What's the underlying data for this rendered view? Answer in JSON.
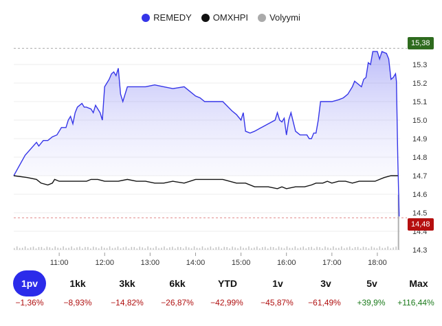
{
  "legend": [
    {
      "label": "REMEDY",
      "color": "#3535e8"
    },
    {
      "label": "OMXHPI",
      "color": "#111111"
    },
    {
      "label": "Volyymi",
      "color": "#aaaaaa"
    }
  ],
  "badges": {
    "high": "15,38",
    "last": "14,48",
    "high_color": "#2e6b1e",
    "last_color": "#b50f0f"
  },
  "chart_data": {
    "type": "line",
    "title": "",
    "xlabel": "",
    "ylabel": "",
    "x_ticks": [
      "11:00",
      "12:00",
      "13:00",
      "14:00",
      "15:00",
      "16:00",
      "17:00",
      "18:00"
    ],
    "y_ticks": [
      "15.3",
      "15.2",
      "15.1",
      "15.0",
      "14.9",
      "14.8",
      "14.7",
      "14.6",
      "14.5",
      "14.4",
      "14.3"
    ],
    "ylim": [
      14.3,
      15.4
    ],
    "xlim": [
      10.0,
      18.5
    ],
    "series": [
      {
        "name": "REMEDY",
        "points": [
          [
            10.0,
            14.7
          ],
          [
            10.25,
            14.81
          ],
          [
            10.5,
            14.88
          ],
          [
            10.55,
            14.86
          ],
          [
            10.65,
            14.89
          ],
          [
            10.75,
            14.89
          ],
          [
            10.85,
            14.91
          ],
          [
            10.95,
            14.92
          ],
          [
            11.05,
            14.96
          ],
          [
            11.15,
            14.96
          ],
          [
            11.2,
            15.0
          ],
          [
            11.25,
            15.02
          ],
          [
            11.3,
            14.98
          ],
          [
            11.35,
            15.04
          ],
          [
            11.4,
            15.07
          ],
          [
            11.5,
            15.09
          ],
          [
            11.55,
            15.07
          ],
          [
            11.6,
            15.07
          ],
          [
            11.7,
            15.06
          ],
          [
            11.75,
            15.04
          ],
          [
            11.8,
            15.08
          ],
          [
            11.9,
            15.04
          ],
          [
            11.95,
            15.0
          ],
          [
            12.0,
            15.18
          ],
          [
            12.05,
            15.2
          ],
          [
            12.1,
            15.22
          ],
          [
            12.15,
            15.25
          ],
          [
            12.2,
            15.26
          ],
          [
            12.25,
            15.24
          ],
          [
            12.3,
            15.28
          ],
          [
            12.35,
            15.14
          ],
          [
            12.4,
            15.1
          ],
          [
            12.5,
            15.18
          ],
          [
            12.7,
            15.18
          ],
          [
            12.9,
            15.18
          ],
          [
            13.1,
            15.19
          ],
          [
            13.3,
            15.18
          ],
          [
            13.5,
            15.17
          ],
          [
            13.75,
            15.18
          ],
          [
            13.85,
            15.16
          ],
          [
            14.0,
            15.13
          ],
          [
            14.1,
            15.12
          ],
          [
            14.2,
            15.1
          ],
          [
            14.4,
            15.1
          ],
          [
            14.6,
            15.1
          ],
          [
            14.8,
            15.05
          ],
          [
            14.9,
            15.03
          ],
          [
            15.0,
            15.0
          ],
          [
            15.05,
            15.04
          ],
          [
            15.1,
            14.94
          ],
          [
            15.2,
            14.93
          ],
          [
            15.3,
            14.94
          ],
          [
            15.45,
            14.96
          ],
          [
            15.6,
            14.98
          ],
          [
            15.75,
            15.0
          ],
          [
            15.8,
            15.04
          ],
          [
            15.85,
            15.0
          ],
          [
            15.9,
            14.99
          ],
          [
            15.95,
            15.01
          ],
          [
            16.0,
            14.92
          ],
          [
            16.05,
            15.0
          ],
          [
            16.1,
            15.04
          ],
          [
            16.2,
            14.94
          ],
          [
            16.3,
            14.92
          ],
          [
            16.45,
            14.92
          ],
          [
            16.5,
            14.9
          ],
          [
            16.55,
            14.9
          ],
          [
            16.6,
            14.93
          ],
          [
            16.65,
            14.93
          ],
          [
            16.7,
            15.0
          ],
          [
            16.75,
            15.1
          ],
          [
            16.85,
            15.1
          ],
          [
            17.0,
            15.1
          ],
          [
            17.15,
            15.11
          ],
          [
            17.25,
            15.12
          ],
          [
            17.3,
            15.13
          ],
          [
            17.35,
            15.14
          ],
          [
            17.45,
            15.18
          ],
          [
            17.5,
            15.21
          ],
          [
            17.55,
            15.2
          ],
          [
            17.65,
            15.18
          ],
          [
            17.7,
            15.22
          ],
          [
            17.75,
            15.23
          ],
          [
            17.8,
            15.31
          ],
          [
            17.85,
            15.3
          ],
          [
            17.9,
            15.37
          ],
          [
            17.95,
            15.37
          ],
          [
            18.0,
            15.37
          ],
          [
            18.05,
            15.33
          ],
          [
            18.1,
            15.37
          ],
          [
            18.2,
            15.36
          ],
          [
            18.25,
            15.33
          ],
          [
            18.3,
            15.22
          ],
          [
            18.35,
            15.23
          ],
          [
            18.4,
            15.25
          ],
          [
            18.42,
            15.21
          ],
          [
            18.45,
            14.79
          ],
          [
            18.48,
            14.48
          ]
        ]
      },
      {
        "name": "OMXHPI",
        "points": [
          [
            10.0,
            14.7
          ],
          [
            10.3,
            14.69
          ],
          [
            10.5,
            14.68
          ],
          [
            10.6,
            14.66
          ],
          [
            10.75,
            14.65
          ],
          [
            10.85,
            14.66
          ],
          [
            10.9,
            14.68
          ],
          [
            11.0,
            14.67
          ],
          [
            11.2,
            14.67
          ],
          [
            11.4,
            14.67
          ],
          [
            11.6,
            14.67
          ],
          [
            11.7,
            14.68
          ],
          [
            11.85,
            14.68
          ],
          [
            12.0,
            14.67
          ],
          [
            12.15,
            14.67
          ],
          [
            12.3,
            14.67
          ],
          [
            12.5,
            14.68
          ],
          [
            12.7,
            14.67
          ],
          [
            12.9,
            14.67
          ],
          [
            13.1,
            14.66
          ],
          [
            13.3,
            14.66
          ],
          [
            13.5,
            14.67
          ],
          [
            13.75,
            14.66
          ],
          [
            14.0,
            14.68
          ],
          [
            14.3,
            14.68
          ],
          [
            14.6,
            14.68
          ],
          [
            14.9,
            14.66
          ],
          [
            15.1,
            14.66
          ],
          [
            15.3,
            14.64
          ],
          [
            15.6,
            14.64
          ],
          [
            15.8,
            14.63
          ],
          [
            15.9,
            14.64
          ],
          [
            16.0,
            14.63
          ],
          [
            16.2,
            14.64
          ],
          [
            16.4,
            14.64
          ],
          [
            16.55,
            14.65
          ],
          [
            16.65,
            14.66
          ],
          [
            16.8,
            14.66
          ],
          [
            16.9,
            14.67
          ],
          [
            17.0,
            14.66
          ],
          [
            17.15,
            14.67
          ],
          [
            17.3,
            14.67
          ],
          [
            17.45,
            14.66
          ],
          [
            17.6,
            14.67
          ],
          [
            17.8,
            14.67
          ],
          [
            17.95,
            14.67
          ],
          [
            18.05,
            14.68
          ],
          [
            18.15,
            14.69
          ],
          [
            18.3,
            14.7
          ],
          [
            18.45,
            14.7
          ]
        ]
      }
    ],
    "volume_note": "small gray volume bars along bottom",
    "reference_lines": [
      {
        "name": "high",
        "value": 15.38
      },
      {
        "name": "last",
        "value": 14.48
      }
    ]
  },
  "tabs": [
    {
      "label": "1pv",
      "active": true
    },
    {
      "label": "1kk",
      "active": false
    },
    {
      "label": "3kk",
      "active": false
    },
    {
      "label": "6kk",
      "active": false
    },
    {
      "label": "YTD",
      "active": false
    },
    {
      "label": "1v",
      "active": false
    },
    {
      "label": "3v",
      "active": false
    },
    {
      "label": "5v",
      "active": false
    },
    {
      "label": "Max",
      "active": false
    }
  ],
  "changes": [
    {
      "value": "−1,36%",
      "dir": "neg"
    },
    {
      "value": "−8,93%",
      "dir": "neg"
    },
    {
      "value": "−14,82%",
      "dir": "neg"
    },
    {
      "value": "−26,87%",
      "dir": "neg"
    },
    {
      "value": "−42,99%",
      "dir": "neg"
    },
    {
      "value": "−45,87%",
      "dir": "neg"
    },
    {
      "value": "−61,49%",
      "dir": "neg"
    },
    {
      "value": "+39,9%",
      "dir": "pos"
    },
    {
      "value": "+116,44%",
      "dir": "pos"
    }
  ]
}
